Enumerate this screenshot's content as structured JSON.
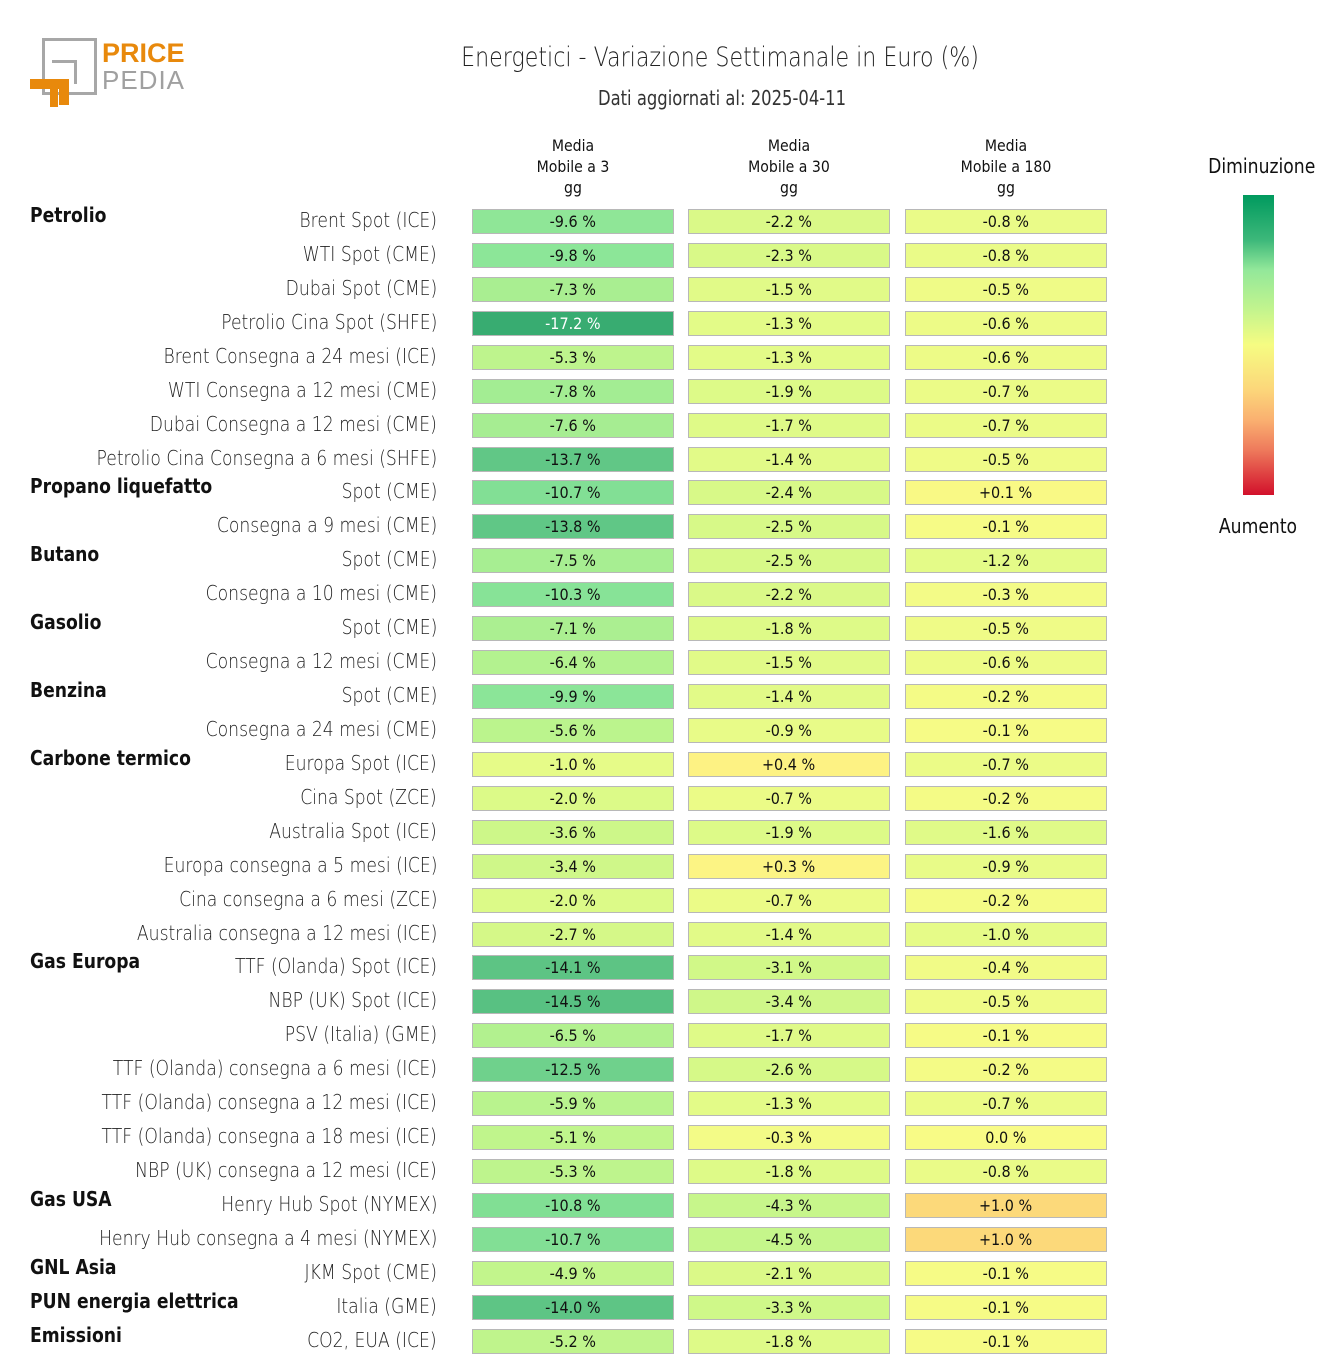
{
  "logo": {
    "word1": "PRICE",
    "word2": "PEDIA",
    "brand_color": "#e8890c",
    "secondary_color": "#a0a0a0"
  },
  "header": {
    "title": "Energetici - Variazione Settimanale in Euro (%)",
    "subtitle": "Dati aggiornati al: 2025-04-11"
  },
  "legend": {
    "top_label": "Diminuzione",
    "bottom_label": "Aumento",
    "colors": [
      "#009a5e",
      "#93e89a",
      "#f6fc82",
      "#fab070",
      "#d2102b"
    ]
  },
  "chart_data": {
    "type": "heatmap",
    "title": "Energetici - Variazione Settimanale in Euro (%)",
    "subtitle": "Dati aggiornati al: 2025-04-11",
    "columns": [
      {
        "line1": "Media",
        "line2": "Mobile a 3",
        "line3": "gg"
      },
      {
        "line1": "Media",
        "line2": "Mobile a 30",
        "line3": "gg"
      },
      {
        "line1": "Media",
        "line2": "Mobile a 180",
        "line3": "gg"
      }
    ],
    "color_scale": {
      "low_label": "Diminuzione",
      "high_label": "Aumento",
      "low_color": "#009a5e",
      "mid_color": "#f6fc82",
      "high_color": "#d2102b"
    },
    "rows": [
      {
        "group": "Petrolio",
        "label": "Brent Spot (ICE)",
        "values": [
          -9.6,
          -2.2,
          -0.8
        ],
        "text": [
          "-9.6 %",
          "-2.2 %",
          "-0.8 %"
        ]
      },
      {
        "group": "",
        "label": "WTI Spot (CME)",
        "values": [
          -9.8,
          -2.3,
          -0.8
        ],
        "text": [
          "-9.8 %",
          "-2.3 %",
          "-0.8 %"
        ]
      },
      {
        "group": "",
        "label": "Dubai Spot (CME)",
        "values": [
          -7.3,
          -1.5,
          -0.5
        ],
        "text": [
          "-7.3 %",
          "-1.5 %",
          "-0.5 %"
        ]
      },
      {
        "group": "",
        "label": "Petrolio Cina Spot (SHFE)",
        "values": [
          -17.2,
          -1.3,
          -0.6
        ],
        "text": [
          "-17.2 %",
          "-1.3 %",
          "-0.6 %"
        ]
      },
      {
        "group": "",
        "label": "Brent Consegna a 24 mesi (ICE)",
        "values": [
          -5.3,
          -1.3,
          -0.6
        ],
        "text": [
          "-5.3 %",
          "-1.3 %",
          "-0.6 %"
        ]
      },
      {
        "group": "",
        "label": "WTI Consegna a 12 mesi (CME)",
        "values": [
          -7.8,
          -1.9,
          -0.7
        ],
        "text": [
          "-7.8 %",
          "-1.9 %",
          "-0.7 %"
        ]
      },
      {
        "group": "",
        "label": "Dubai Consegna a 12 mesi (CME)",
        "values": [
          -7.6,
          -1.7,
          -0.7
        ],
        "text": [
          "-7.6 %",
          "-1.7 %",
          "-0.7 %"
        ]
      },
      {
        "group": "",
        "label": "Petrolio Cina Consegna a 6 mesi (SHFE)",
        "values": [
          -13.7,
          -1.4,
          -0.5
        ],
        "text": [
          "-13.7 %",
          "-1.4 %",
          "-0.5 %"
        ]
      },
      {
        "group": "Propano liquefatto",
        "label": "Spot (CME)",
        "values": [
          -10.7,
          -2.4,
          0.1
        ],
        "text": [
          "-10.7 %",
          "-2.4 %",
          "+0.1 %"
        ]
      },
      {
        "group": "",
        "label": "Consegna a 9 mesi (CME)",
        "values": [
          -13.8,
          -2.5,
          -0.1
        ],
        "text": [
          "-13.8 %",
          "-2.5 %",
          "-0.1 %"
        ]
      },
      {
        "group": "Butano",
        "label": "Spot (CME)",
        "values": [
          -7.5,
          -2.5,
          -1.2
        ],
        "text": [
          "-7.5 %",
          "-2.5 %",
          "-1.2 %"
        ]
      },
      {
        "group": "",
        "label": "Consegna a 10 mesi (CME)",
        "values": [
          -10.3,
          -2.2,
          -0.3
        ],
        "text": [
          "-10.3 %",
          "-2.2 %",
          "-0.3 %"
        ]
      },
      {
        "group": "Gasolio",
        "label": "Spot (CME)",
        "values": [
          -7.1,
          -1.8,
          -0.5
        ],
        "text": [
          "-7.1 %",
          "-1.8 %",
          "-0.5 %"
        ]
      },
      {
        "group": "",
        "label": "Consegna a 12 mesi (CME)",
        "values": [
          -6.4,
          -1.5,
          -0.6
        ],
        "text": [
          "-6.4 %",
          "-1.5 %",
          "-0.6 %"
        ]
      },
      {
        "group": "Benzina",
        "label": "Spot (CME)",
        "values": [
          -9.9,
          -1.4,
          -0.2
        ],
        "text": [
          "-9.9 %",
          "-1.4 %",
          "-0.2 %"
        ]
      },
      {
        "group": "",
        "label": "Consegna a 24 mesi (CME)",
        "values": [
          -5.6,
          -0.9,
          -0.1
        ],
        "text": [
          "-5.6 %",
          "-0.9 %",
          "-0.1 %"
        ]
      },
      {
        "group": "Carbone termico",
        "label": "Europa Spot (ICE)",
        "values": [
          -1.0,
          0.4,
          -0.7
        ],
        "text": [
          "-1.0 %",
          "+0.4 %",
          "-0.7 %"
        ]
      },
      {
        "group": "",
        "label": "Cina Spot (ZCE)",
        "values": [
          -2.0,
          -0.7,
          -0.2
        ],
        "text": [
          "-2.0 %",
          "-0.7 %",
          "-0.2 %"
        ]
      },
      {
        "group": "",
        "label": "Australia Spot (ICE)",
        "values": [
          -3.6,
          -1.9,
          -1.6
        ],
        "text": [
          "-3.6 %",
          "-1.9 %",
          "-1.6 %"
        ]
      },
      {
        "group": "",
        "label": "Europa consegna a 5 mesi (ICE)",
        "values": [
          -3.4,
          0.3,
          -0.9
        ],
        "text": [
          "-3.4 %",
          "+0.3 %",
          "-0.9 %"
        ]
      },
      {
        "group": "",
        "label": "Cina consegna a 6 mesi (ZCE)",
        "values": [
          -2.0,
          -0.7,
          -0.2
        ],
        "text": [
          "-2.0 %",
          "-0.7 %",
          "-0.2 %"
        ]
      },
      {
        "group": "",
        "label": "Australia consegna a 12 mesi (ICE)",
        "values": [
          -2.7,
          -1.4,
          -1.0
        ],
        "text": [
          "-2.7 %",
          "-1.4 %",
          "-1.0 %"
        ]
      },
      {
        "group": "Gas Europa",
        "label": "TTF (Olanda) Spot (ICE)",
        "values": [
          -14.1,
          -3.1,
          -0.4
        ],
        "text": [
          "-14.1 %",
          "-3.1 %",
          "-0.4 %"
        ]
      },
      {
        "group": "",
        "label": "NBP (UK) Spot (ICE)",
        "values": [
          -14.5,
          -3.4,
          -0.5
        ],
        "text": [
          "-14.5 %",
          "-3.4 %",
          "-0.5 %"
        ]
      },
      {
        "group": "",
        "label": "PSV (Italia) (GME)",
        "values": [
          -6.5,
          -1.7,
          -0.1
        ],
        "text": [
          "-6.5 %",
          "-1.7 %",
          "-0.1 %"
        ]
      },
      {
        "group": "",
        "label": "TTF (Olanda) consegna a 6 mesi (ICE)",
        "values": [
          -12.5,
          -2.6,
          -0.2
        ],
        "text": [
          "-12.5 %",
          "-2.6 %",
          "-0.2 %"
        ]
      },
      {
        "group": "",
        "label": "TTF (Olanda) consegna a 12 mesi (ICE)",
        "values": [
          -5.9,
          -1.3,
          -0.7
        ],
        "text": [
          "-5.9 %",
          "-1.3 %",
          "-0.7 %"
        ]
      },
      {
        "group": "",
        "label": "TTF (Olanda) consegna a 18 mesi (ICE)",
        "values": [
          -5.1,
          -0.3,
          0.0
        ],
        "text": [
          "-5.1 %",
          "-0.3 %",
          "0.0 %"
        ]
      },
      {
        "group": "",
        "label": "NBP (UK) consegna a 12 mesi (ICE)",
        "values": [
          -5.3,
          -1.8,
          -0.8
        ],
        "text": [
          "-5.3 %",
          "-1.8 %",
          "-0.8 %"
        ]
      },
      {
        "group": "Gas USA",
        "label": "Henry Hub Spot (NYMEX)",
        "values": [
          -10.8,
          -4.3,
          1.0
        ],
        "text": [
          "-10.8 %",
          "-4.3 %",
          "+1.0 %"
        ]
      },
      {
        "group": "",
        "label": "Henry Hub consegna a 4 mesi (NYMEX)",
        "values": [
          -10.7,
          -4.5,
          1.0
        ],
        "text": [
          "-10.7 %",
          "-4.5 %",
          "+1.0 %"
        ]
      },
      {
        "group": "GNL Asia",
        "label": "JKM Spot (CME)",
        "values": [
          -4.9,
          -2.1,
          -0.1
        ],
        "text": [
          "-4.9 %",
          "-2.1 %",
          "-0.1 %"
        ]
      },
      {
        "group": "PUN energia elettrica",
        "label": "Italia (GME)",
        "values": [
          -14.0,
          -3.3,
          -0.1
        ],
        "text": [
          "-14.0 %",
          "-3.3 %",
          "-0.1 %"
        ]
      },
      {
        "group": "Emissioni",
        "label": "CO2, EUA (ICE)",
        "values": [
          -5.2,
          -1.8,
          -0.1
        ],
        "text": [
          "-5.2 %",
          "-1.8 %",
          "-0.1 %"
        ]
      }
    ]
  }
}
